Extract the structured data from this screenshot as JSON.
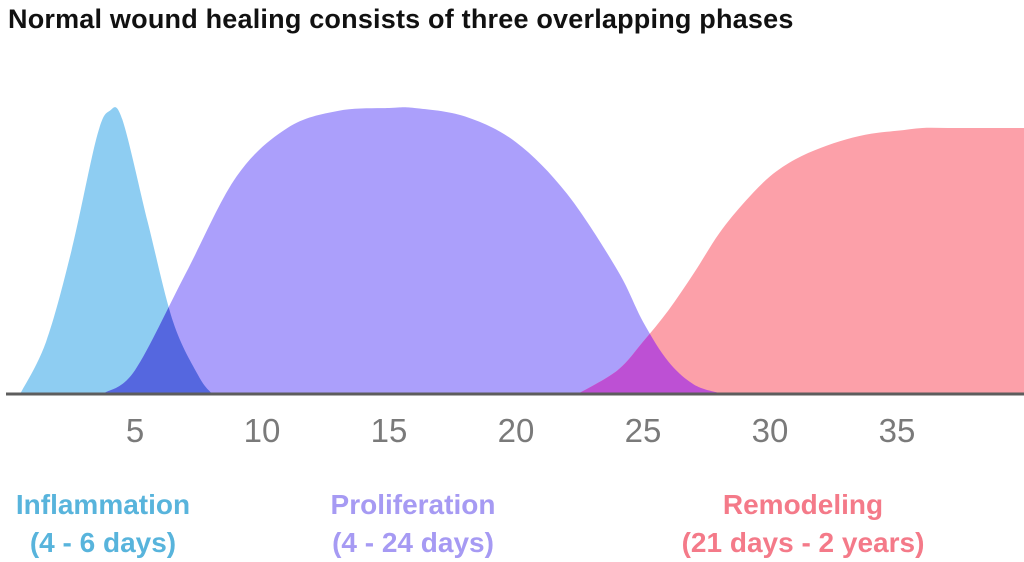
{
  "title": "Normal wound healing consists of three overlapping phases",
  "chart_data": {
    "type": "area",
    "title": "Normal wound healing consists of three overlapping phases",
    "xlabel": "",
    "ylabel": "",
    "xlim": [
      0,
      40
    ],
    "ylim": [
      0,
      1
    ],
    "x_ticks": [
      "5",
      "10",
      "15",
      "20",
      "25",
      "30",
      "35"
    ],
    "grid": false,
    "legend_position": "bottom",
    "series": [
      {
        "name": "Inflammation",
        "range_label": "(4 - 6 days)",
        "color": "#8ecdf2",
        "label_color": "#58b4dc",
        "x": [
          0.5,
          1.5,
          2.5,
          3.5,
          4.0,
          4.5,
          5.5,
          6.5,
          7.5,
          8.0
        ],
        "values": [
          0.0,
          0.18,
          0.5,
          0.9,
          0.99,
          0.96,
          0.6,
          0.25,
          0.06,
          0.0
        ]
      },
      {
        "name": "Proliferation",
        "range_label": "(4 - 24 days)",
        "color": "#ab9ffb",
        "label_color": "#a69af3",
        "x": [
          3.8,
          5,
          7,
          9,
          11,
          13,
          15,
          16,
          18,
          20,
          22,
          24,
          25,
          26,
          27,
          28
        ],
        "values": [
          0.0,
          0.08,
          0.42,
          0.76,
          0.93,
          0.99,
          1.0,
          1.0,
          0.97,
          0.88,
          0.7,
          0.43,
          0.25,
          0.11,
          0.03,
          0.0
        ]
      },
      {
        "name": "Remodeling",
        "range_label": "(21 days - 2 years)",
        "color": "#fca0a9",
        "label_color": "#f47a89",
        "x": [
          22.5,
          24,
          25,
          26,
          27,
          28,
          29,
          30,
          31,
          32,
          33,
          34,
          35,
          36,
          37,
          38,
          39,
          40
        ],
        "values": [
          0.0,
          0.08,
          0.18,
          0.29,
          0.42,
          0.56,
          0.67,
          0.76,
          0.82,
          0.86,
          0.89,
          0.91,
          0.92,
          0.93,
          0.93,
          0.93,
          0.93,
          0.93
        ]
      }
    ],
    "overlaps": [
      {
        "between": [
          "Inflammation",
          "Proliferation"
        ],
        "color": "#5567df"
      },
      {
        "between": [
          "Proliferation",
          "Remodeling"
        ],
        "color": "#bd50d4"
      }
    ]
  }
}
